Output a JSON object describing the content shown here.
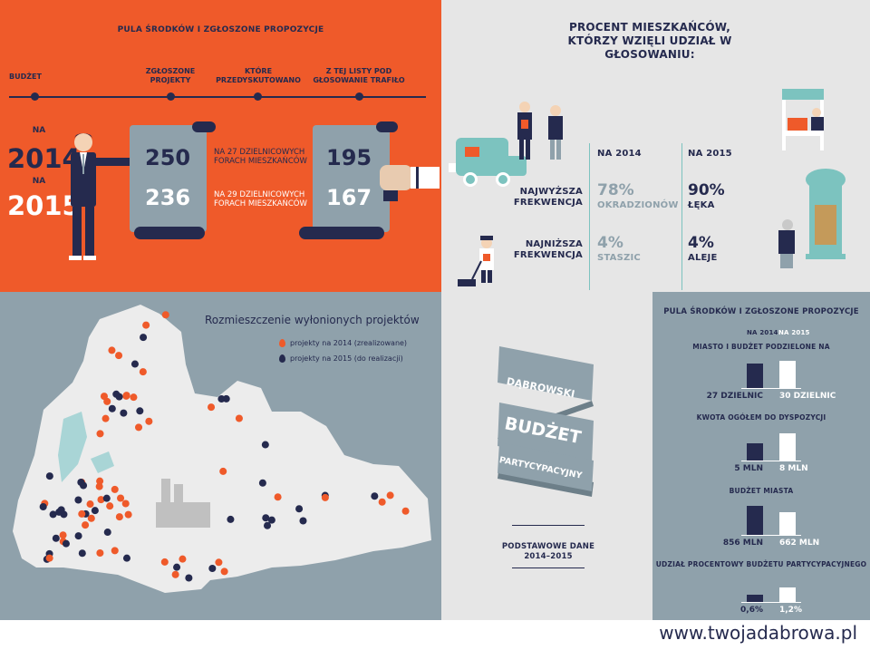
{
  "budget_panel": {
    "title": "PULA ŚRODKÓW I ZGŁOSZONE PROPOZYCJE",
    "timeline": [
      "BUDŻET",
      "ZGŁOSZONE PROJEKTY",
      "KTÓRE PRZEDYSKUTOWANO",
      "Z TEJ LISTY POD GŁOSOWANIE TRAFIŁO"
    ],
    "na_2014": "NA",
    "year_2014": "2014",
    "na_2015": "NA",
    "year_2015": "2015",
    "submitted_2014": "250",
    "submitted_2015": "236",
    "discussed_2014": "NA 27 DZIELNICOWYCH FORACH MIESZKAŃCÓW",
    "discussed_2015": "NA 29 DZIELNICOWYCH FORACH MIESZKAŃCÓW",
    "voted_2014": "195",
    "voted_2015": "167"
  },
  "turnout_panel": {
    "title": "PROCENT MIESZKAŃCÓW, KTÓRZY WZIĘLI UDZIAŁ W GŁOSOWANIU:",
    "col_2014": "NA 2014",
    "col_2015": "NA 2015",
    "highest_label": "NAJWYŻSZA FREKWENCJA",
    "lowest_label": "NAJNIŻSZA FREKWENCJA",
    "highest_2014_pct": "78%",
    "highest_2014_place": "OKRADZIONÓW",
    "highest_2015_pct": "90%",
    "highest_2015_place": "ŁĘKA",
    "lowest_2014_pct": "4%",
    "lowest_2014_place": "STASZIC",
    "lowest_2015_pct": "4%",
    "lowest_2015_place": "ALEJE"
  },
  "map_panel": {
    "title": "Rozmieszczenie wyłonionych projektów",
    "legend_2014": "projekty na 2014 (zrealizowane)",
    "legend_2015": "projekty na 2015 (do realizacji)"
  },
  "logo_panel": {
    "line1": "DĄBROWSKI",
    "line2": "BUDŻET",
    "line3": "PARTYCYPACYJNY",
    "subtitle": "PODSTAWOWE DANE 2014–2015"
  },
  "chart_data": [
    {
      "type": "bar",
      "title": "MIASTO I BUDŻET PODZIELONE NA",
      "categories": [
        "NA 2014",
        "NA 2015"
      ],
      "values": [
        27,
        30
      ],
      "unit": "DZIELNIC",
      "data_labels": [
        "27 DZIELNIC",
        "30 DZIELNIC"
      ]
    },
    {
      "type": "bar",
      "title": "KWOTA OGÓŁEM DO DYSPOZYCJI",
      "categories": [
        "NA 2014",
        "NA 2015"
      ],
      "values": [
        5,
        8
      ],
      "unit": "MLN",
      "data_labels": [
        "5 MLN",
        "8 MLN"
      ]
    },
    {
      "type": "bar",
      "title": "BUDŻET MIASTA",
      "categories": [
        "NA 2014",
        "NA 2015"
      ],
      "values": [
        856,
        662
      ],
      "unit": "MLN",
      "data_labels": [
        "856 MLN",
        "662 MLN"
      ]
    },
    {
      "type": "bar",
      "title": "UDZIAŁ PROCENTOWY BUDŻETU PARTYCYPACYJNEGO",
      "categories": [
        "NA 2014",
        "NA 2015"
      ],
      "values": [
        0.6,
        1.2
      ],
      "unit": "%",
      "data_labels": [
        "0,6%",
        "1,2%"
      ]
    }
  ],
  "bars_panel": {
    "title": "PULA ŚRODKÓW I ZGŁOSZONE PROPOZYCJE",
    "legend_2014": "NA 2014",
    "legend_2015": "NA 2015"
  },
  "colors": {
    "orange": "#ef5a2a",
    "navy": "#252a4e",
    "slate": "#8fa1ab",
    "teal": "#7cc3bf"
  },
  "footer": {
    "url": "www.twojadabrowa.pl"
  }
}
